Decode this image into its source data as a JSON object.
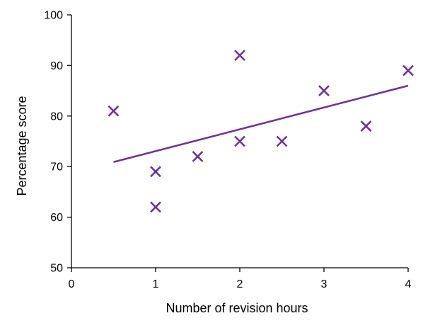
{
  "chart_data": {
    "type": "scatter",
    "xlabel": "Number of revision hours",
    "ylabel": "Percentage score",
    "xlim": [
      0,
      4
    ],
    "ylim": [
      50,
      100
    ],
    "x_ticks": [
      0,
      1,
      2,
      3,
      4
    ],
    "y_ticks": [
      50,
      60,
      70,
      80,
      90,
      100
    ],
    "x_tick_labels": [
      "0",
      "1",
      "2",
      "3",
      "4"
    ],
    "y_tick_labels": [
      "50",
      "60",
      "70",
      "80",
      "90",
      "100"
    ],
    "grid": false,
    "legend": "none",
    "marker": "x",
    "color": "#7030a0",
    "points": [
      {
        "x": 0.5,
        "y": 81
      },
      {
        "x": 1,
        "y": 69
      },
      {
        "x": 1,
        "y": 62
      },
      {
        "x": 1.5,
        "y": 72
      },
      {
        "x": 2,
        "y": 92
      },
      {
        "x": 2,
        "y": 75
      },
      {
        "x": 2.5,
        "y": 75
      },
      {
        "x": 3,
        "y": 85
      },
      {
        "x": 3.5,
        "y": 78
      },
      {
        "x": 4,
        "y": 89
      }
    ],
    "trendline": {
      "x": [
        0.5,
        4
      ],
      "y": [
        70.9,
        86
      ]
    }
  }
}
